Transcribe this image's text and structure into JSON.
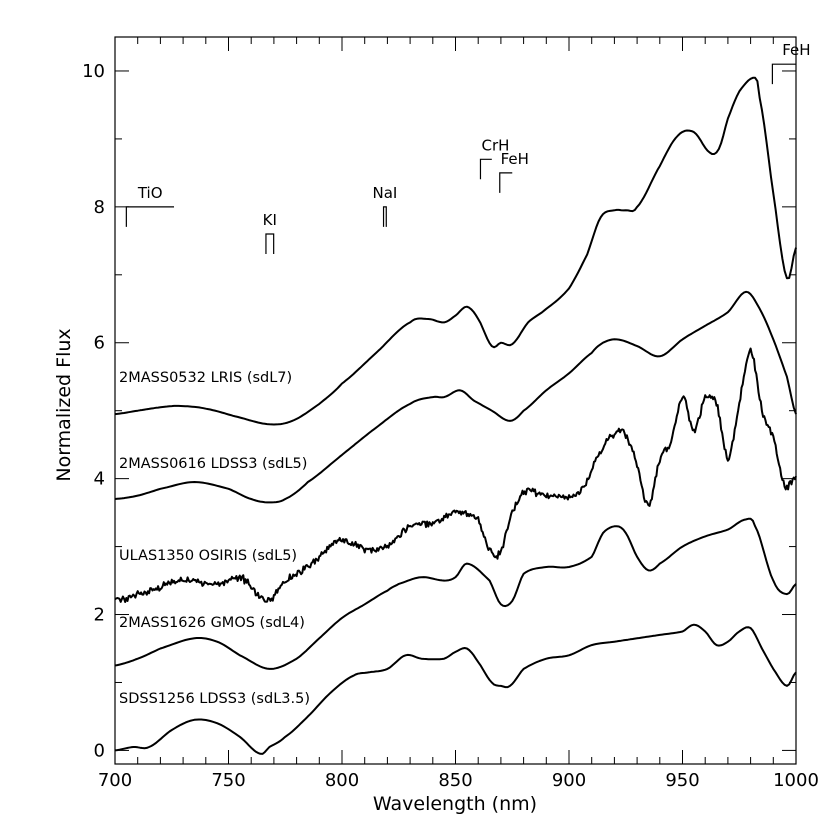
{
  "chart_data": {
    "type": "line",
    "title": "",
    "xlabel": "Wavelength (nm)",
    "ylabel": "Normalized Flux",
    "xlim": [
      700,
      1000
    ],
    "ylim": [
      -0.2,
      10.5
    ],
    "xticks": [
      700,
      750,
      800,
      850,
      900,
      950,
      1000
    ],
    "yticks": [
      0,
      2,
      4,
      6,
      8,
      10
    ],
    "grid": false,
    "series": [
      {
        "name": "2MASS0532 LRIS (sdL7)",
        "noise": 0,
        "x": [
          700,
          710,
          720,
          728,
          740,
          755,
          768,
          778,
          790,
          800,
          815,
          830,
          838,
          845,
          850,
          855,
          860,
          866,
          870,
          875,
          882,
          890,
          900,
          908,
          914,
          920,
          925,
          930,
          940,
          948,
          955,
          962,
          966,
          970,
          975,
          982,
          984,
          990,
          996,
          1000
        ],
        "y": [
          4.95,
          5.0,
          5.05,
          5.07,
          5.03,
          4.9,
          4.8,
          4.85,
          5.1,
          5.4,
          5.85,
          6.3,
          6.35,
          6.3,
          6.4,
          6.53,
          6.35,
          5.95,
          6.0,
          5.98,
          6.3,
          6.5,
          6.8,
          7.3,
          7.85,
          7.95,
          7.95,
          8.0,
          8.6,
          9.05,
          9.1,
          8.8,
          8.85,
          9.3,
          9.7,
          9.9,
          9.6,
          8.2,
          6.95,
          7.4
        ]
      },
      {
        "name": "2MASS0616 LDSS3 (sdL5)",
        "noise": 0,
        "x": [
          700,
          710,
          720,
          735,
          750,
          760,
          768,
          775,
          785,
          800,
          815,
          830,
          840,
          845,
          852,
          858,
          866,
          874,
          880,
          890,
          900,
          910,
          915,
          921,
          930,
          940,
          950,
          960,
          970,
          978,
          984,
          990,
          996,
          1000
        ],
        "y": [
          3.7,
          3.75,
          3.85,
          3.95,
          3.85,
          3.7,
          3.65,
          3.7,
          3.95,
          4.35,
          4.75,
          5.1,
          5.2,
          5.2,
          5.3,
          5.15,
          5.0,
          4.85,
          5.0,
          5.3,
          5.55,
          5.85,
          6.0,
          6.05,
          5.95,
          5.8,
          6.05,
          6.25,
          6.45,
          6.75,
          6.5,
          6.05,
          5.5,
          4.95
        ]
      },
      {
        "name": "ULAS1350 OSIRIS (sdL5)",
        "noise": 0.08,
        "x": [
          700,
          715,
          730,
          745,
          755,
          760,
          767,
          775,
          785,
          795,
          800,
          812,
          820,
          830,
          840,
          850,
          860,
          866,
          870,
          875,
          880,
          890,
          900,
          907,
          912,
          920,
          925,
          930,
          935,
          940,
          945,
          950,
          955,
          960,
          965,
          970,
          975,
          980,
          985,
          990,
          995,
          1000
        ],
        "y": [
          2.2,
          2.35,
          2.5,
          2.45,
          2.55,
          2.4,
          2.2,
          2.5,
          2.7,
          3.0,
          3.1,
          2.95,
          3.0,
          3.3,
          3.35,
          3.5,
          3.4,
          2.9,
          2.95,
          3.5,
          3.8,
          3.75,
          3.75,
          3.9,
          4.3,
          4.65,
          4.65,
          4.2,
          3.6,
          4.3,
          4.55,
          5.2,
          4.7,
          5.2,
          5.1,
          4.3,
          5.1,
          5.9,
          5.0,
          4.6,
          3.9,
          4.05
        ]
      },
      {
        "name": "2MASS1626 GMOS (sdL4)",
        "noise": 0,
        "x": [
          700,
          710,
          720,
          735,
          745,
          755,
          768,
          780,
          790,
          800,
          810,
          820,
          825,
          835,
          845,
          850,
          855,
          865,
          870,
          875,
          880,
          890,
          900,
          910,
          915,
          921,
          925,
          930,
          935,
          940,
          950,
          960,
          970,
          978,
          982,
          990,
          996,
          1000
        ],
        "y": [
          1.25,
          1.35,
          1.5,
          1.65,
          1.6,
          1.4,
          1.2,
          1.35,
          1.65,
          1.95,
          2.15,
          2.35,
          2.45,
          2.55,
          2.5,
          2.55,
          2.75,
          2.5,
          2.15,
          2.2,
          2.6,
          2.7,
          2.7,
          2.85,
          3.2,
          3.3,
          3.2,
          2.85,
          2.65,
          2.75,
          3.0,
          3.15,
          3.25,
          3.4,
          3.3,
          2.5,
          2.3,
          2.45
        ]
      },
      {
        "name": "SDSS1256 LDSS3 (sdL3.5)",
        "noise": 0,
        "x": [
          700,
          708,
          715,
          725,
          735,
          745,
          755,
          764,
          768,
          775,
          785,
          795,
          805,
          812,
          820,
          828,
          835,
          845,
          850,
          855,
          860,
          866,
          870,
          874,
          880,
          890,
          900,
          910,
          920,
          930,
          940,
          950,
          955,
          960,
          965,
          970,
          975,
          980,
          985,
          990,
          996,
          1000
        ],
        "y": [
          0.0,
          0.05,
          0.05,
          0.3,
          0.45,
          0.4,
          0.2,
          -0.05,
          0.05,
          0.2,
          0.5,
          0.85,
          1.1,
          1.15,
          1.2,
          1.4,
          1.35,
          1.35,
          1.45,
          1.5,
          1.3,
          1.0,
          0.95,
          0.95,
          1.2,
          1.35,
          1.4,
          1.55,
          1.6,
          1.65,
          1.7,
          1.75,
          1.85,
          1.75,
          1.55,
          1.6,
          1.75,
          1.8,
          1.5,
          1.2,
          0.95,
          1.15
        ]
      }
    ],
    "features": [
      {
        "label": "TiO",
        "type": "bracket",
        "x1": 705,
        "x2": 726,
        "y": 8.0
      },
      {
        "label": "KI",
        "type": "doublet",
        "x1": 766.5,
        "x2": 769.9,
        "y": 7.6
      },
      {
        "label": "NaI",
        "type": "doublet",
        "x1": 818.3,
        "x2": 819.5,
        "y": 8.0
      },
      {
        "label": "CrH",
        "type": "bracket",
        "x1": 861,
        "x2": 866,
        "y": 8.7
      },
      {
        "label": "FeH",
        "type": "bracket",
        "x1": 869.5,
        "x2": 875,
        "y": 8.5
      },
      {
        "label": "FeH",
        "type": "bracket",
        "x1": 989.6,
        "x2": 1000,
        "y": 10.1
      }
    ]
  }
}
